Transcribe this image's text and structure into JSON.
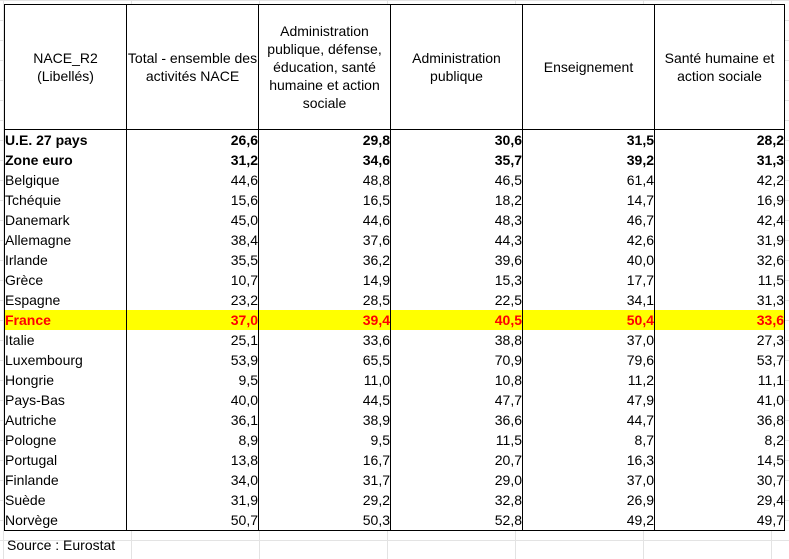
{
  "headers": [
    "NACE_R2 (Libellés)",
    "Total - ensemble des activités NACE",
    "Administration publique, défense, éducation, santé humaine et action sociale",
    "Administration publique",
    "Enseignement",
    "Santé humaine et action sociale"
  ],
  "rows": [
    {
      "name": "U.E. 27 pays",
      "values": [
        "26,6",
        "29,8",
        "30,6",
        "31,5",
        "28,2"
      ],
      "style": "bold"
    },
    {
      "name": "Zone euro",
      "values": [
        "31,2",
        "34,6",
        "35,7",
        "39,2",
        "31,3"
      ],
      "style": "bold"
    },
    {
      "name": "Belgique",
      "values": [
        "44,6",
        "48,8",
        "46,5",
        "61,4",
        "42,2"
      ],
      "style": ""
    },
    {
      "name": "Tchéquie",
      "values": [
        "15,6",
        "16,5",
        "18,2",
        "14,7",
        "16,9"
      ],
      "style": ""
    },
    {
      "name": "Danemark",
      "values": [
        "45,0",
        "44,6",
        "48,3",
        "46,7",
        "42,4"
      ],
      "style": ""
    },
    {
      "name": "Allemagne",
      "values": [
        "38,4",
        "37,6",
        "44,3",
        "42,6",
        "31,9"
      ],
      "style": ""
    },
    {
      "name": "Irlande",
      "values": [
        "35,5",
        "36,2",
        "39,6",
        "40,0",
        "32,6"
      ],
      "style": ""
    },
    {
      "name": "Grèce",
      "values": [
        "10,7",
        "14,9",
        "15,3",
        "17,7",
        "11,5"
      ],
      "style": ""
    },
    {
      "name": "Espagne",
      "values": [
        "23,2",
        "28,5",
        "22,5",
        "34,1",
        "31,3"
      ],
      "style": ""
    },
    {
      "name": "France",
      "values": [
        "37,0",
        "39,4",
        "40,5",
        "50,4",
        "33,6"
      ],
      "style": "highlight"
    },
    {
      "name": "Italie",
      "values": [
        "25,1",
        "33,6",
        "38,8",
        "37,0",
        "27,3"
      ],
      "style": ""
    },
    {
      "name": "Luxembourg",
      "values": [
        "53,9",
        "65,5",
        "70,9",
        "79,6",
        "53,7"
      ],
      "style": ""
    },
    {
      "name": "Hongrie",
      "values": [
        "9,5",
        "11,0",
        "10,8",
        "11,2",
        "11,1"
      ],
      "style": ""
    },
    {
      "name": "Pays-Bas",
      "values": [
        "40,0",
        "44,5",
        "47,7",
        "47,9",
        "41,0"
      ],
      "style": ""
    },
    {
      "name": "Autriche",
      "values": [
        "36,1",
        "38,9",
        "36,6",
        "44,7",
        "36,8"
      ],
      "style": ""
    },
    {
      "name": "Pologne",
      "values": [
        "8,9",
        "9,5",
        "11,5",
        "8,7",
        "8,2"
      ],
      "style": ""
    },
    {
      "name": "Portugal",
      "values": [
        "13,8",
        "16,7",
        "20,7",
        "16,3",
        "14,5"
      ],
      "style": ""
    },
    {
      "name": "Finlande",
      "values": [
        "34,0",
        "31,7",
        "29,0",
        "37,0",
        "30,7"
      ],
      "style": ""
    },
    {
      "name": "Suède",
      "values": [
        "31,9",
        "29,2",
        "32,8",
        "26,9",
        "29,4"
      ],
      "style": ""
    },
    {
      "name": "Norvège",
      "values": [
        "50,7",
        "50,3",
        "52,8",
        "49,2",
        "49,7"
      ],
      "style": ""
    }
  ],
  "source": "Source : Eurostat",
  "colors": {
    "highlight_bg": "#ffff00",
    "highlight_text": "#ff0000"
  }
}
